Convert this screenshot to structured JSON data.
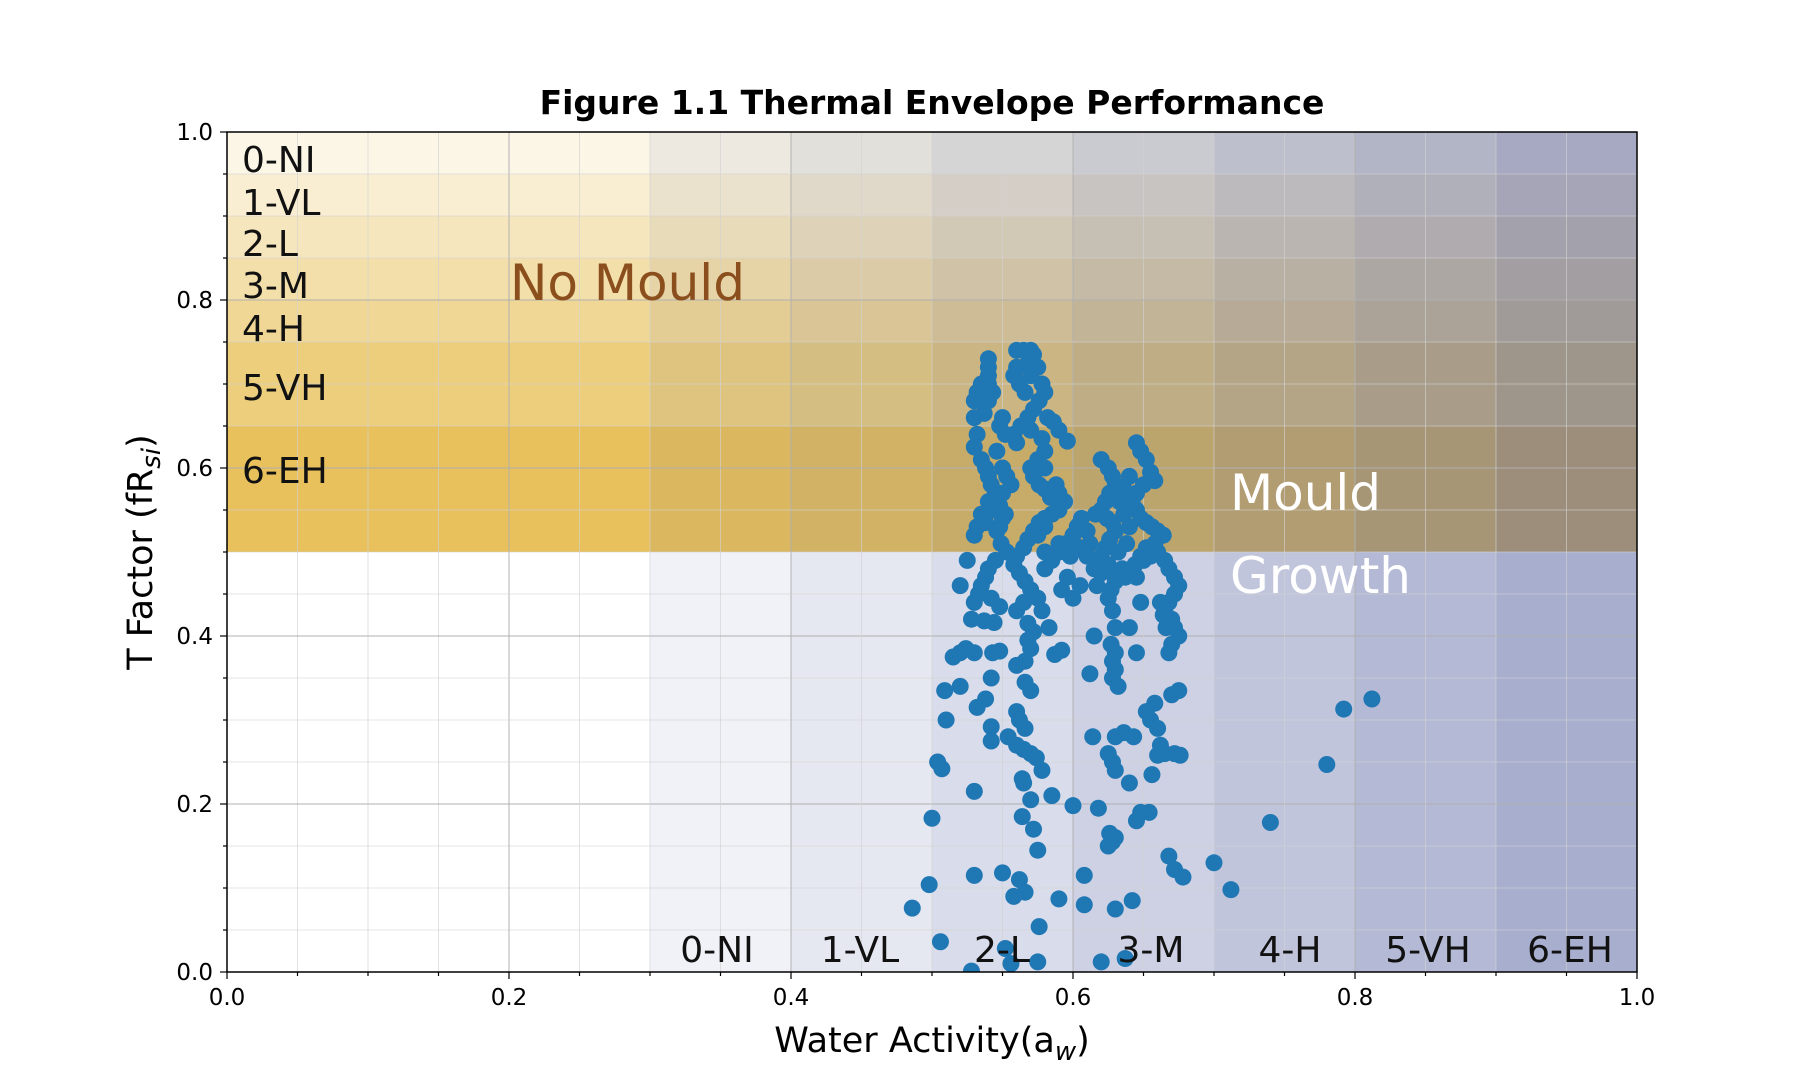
{
  "chart_data": {
    "type": "scatter",
    "title": "Figure 1.1 Thermal Envelope Performance",
    "xlabel": "Water Activity(a",
    "xlabel_sub": "w",
    "xlabel_end": ")",
    "ylabel": "T Factor (fR",
    "ylabel_sub": "si",
    "ylabel_end": ")",
    "xlim": [
      0.0,
      1.0
    ],
    "ylim": [
      0.0,
      1.0
    ],
    "xticks": [
      "0.0",
      "0.2",
      "0.4",
      "0.6",
      "0.8",
      "1.0"
    ],
    "yticks": [
      "0.0",
      "0.2",
      "0.4",
      "0.6",
      "0.8",
      "1.0"
    ],
    "grid": true,
    "y_band_labels": [
      "0-NI",
      "1-VL",
      "2-L",
      "3-M",
      "4-H",
      "5-VH",
      "6-EH"
    ],
    "x_band_labels": [
      "0-NI",
      "1-VL",
      "2-L",
      "3-M",
      "4-H",
      "5-VH",
      "6-EH"
    ],
    "annotations": [
      "No Mould",
      "Mould",
      "Growth"
    ],
    "colors": {
      "points": "#1f77b4",
      "y_band": "#e2b233",
      "x_band": "#4d5a9c",
      "no_mould_text": "#8b4f1e",
      "mould_text": "#ffffff"
    },
    "points": [
      [
        0.54,
        0.73
      ],
      [
        0.54,
        0.72
      ],
      [
        0.54,
        0.71
      ],
      [
        0.54,
        0.7
      ],
      [
        0.543,
        0.69
      ],
      [
        0.54,
        0.68
      ],
      [
        0.537,
        0.665
      ],
      [
        0.535,
        0.7
      ],
      [
        0.532,
        0.69
      ],
      [
        0.53,
        0.68
      ],
      [
        0.53,
        0.66
      ],
      [
        0.532,
        0.64
      ],
      [
        0.53,
        0.625
      ],
      [
        0.535,
        0.61
      ],
      [
        0.538,
        0.6
      ],
      [
        0.54,
        0.59
      ],
      [
        0.542,
        0.58
      ],
      [
        0.545,
        0.57
      ],
      [
        0.54,
        0.56
      ],
      [
        0.543,
        0.55
      ],
      [
        0.535,
        0.545
      ],
      [
        0.538,
        0.535
      ],
      [
        0.532,
        0.53
      ],
      [
        0.53,
        0.52
      ],
      [
        0.548,
        0.53
      ],
      [
        0.55,
        0.54
      ],
      [
        0.55,
        0.66
      ],
      [
        0.548,
        0.65
      ],
      [
        0.552,
        0.64
      ],
      [
        0.546,
        0.62
      ],
      [
        0.55,
        0.6
      ],
      [
        0.553,
        0.59
      ],
      [
        0.556,
        0.58
      ],
      [
        0.55,
        0.57
      ],
      [
        0.548,
        0.555
      ],
      [
        0.552,
        0.545
      ],
      [
        0.546,
        0.525
      ],
      [
        0.549,
        0.51
      ],
      [
        0.553,
        0.5
      ],
      [
        0.545,
        0.49
      ],
      [
        0.54,
        0.48
      ],
      [
        0.538,
        0.47
      ],
      [
        0.535,
        0.46
      ],
      [
        0.533,
        0.45
      ],
      [
        0.53,
        0.44
      ],
      [
        0.542,
        0.445
      ],
      [
        0.548,
        0.435
      ],
      [
        0.56,
        0.43
      ],
      [
        0.565,
        0.44
      ],
      [
        0.56,
        0.74
      ],
      [
        0.565,
        0.74
      ],
      [
        0.57,
        0.74
      ],
      [
        0.572,
        0.735
      ],
      [
        0.568,
        0.725
      ],
      [
        0.56,
        0.72
      ],
      [
        0.558,
        0.71
      ],
      [
        0.562,
        0.7
      ],
      [
        0.566,
        0.69
      ],
      [
        0.57,
        0.71
      ],
      [
        0.575,
        0.72
      ],
      [
        0.578,
        0.7
      ],
      [
        0.58,
        0.69
      ],
      [
        0.576,
        0.68
      ],
      [
        0.572,
        0.67
      ],
      [
        0.568,
        0.66
      ],
      [
        0.563,
        0.65
      ],
      [
        0.558,
        0.64
      ],
      [
        0.56,
        0.63
      ],
      [
        0.57,
        0.645
      ],
      [
        0.578,
        0.635
      ],
      [
        0.582,
        0.66
      ],
      [
        0.586,
        0.655
      ],
      [
        0.59,
        0.645
      ],
      [
        0.58,
        0.62
      ],
      [
        0.575,
        0.61
      ],
      [
        0.57,
        0.6
      ],
      [
        0.572,
        0.59
      ],
      [
        0.576,
        0.58
      ],
      [
        0.58,
        0.575
      ],
      [
        0.584,
        0.565
      ],
      [
        0.588,
        0.58
      ],
      [
        0.59,
        0.57
      ],
      [
        0.594,
        0.56
      ],
      [
        0.59,
        0.55
      ],
      [
        0.585,
        0.545
      ],
      [
        0.58,
        0.54
      ],
      [
        0.576,
        0.535
      ],
      [
        0.572,
        0.525
      ],
      [
        0.568,
        0.515
      ],
      [
        0.565,
        0.505
      ],
      [
        0.56,
        0.495
      ],
      [
        0.558,
        0.485
      ],
      [
        0.562,
        0.475
      ],
      [
        0.566,
        0.465
      ],
      [
        0.57,
        0.455
      ],
      [
        0.575,
        0.445
      ],
      [
        0.58,
        0.48
      ],
      [
        0.585,
        0.49
      ],
      [
        0.59,
        0.5
      ],
      [
        0.595,
        0.51
      ],
      [
        0.6,
        0.52
      ],
      [
        0.603,
        0.53
      ],
      [
        0.606,
        0.54
      ],
      [
        0.61,
        0.525
      ],
      [
        0.612,
        0.51
      ],
      [
        0.605,
        0.505
      ],
      [
        0.598,
        0.495
      ],
      [
        0.596,
        0.47
      ],
      [
        0.592,
        0.455
      ],
      [
        0.6,
        0.445
      ],
      [
        0.61,
        0.495
      ],
      [
        0.615,
        0.48
      ],
      [
        0.62,
        0.475
      ],
      [
        0.617,
        0.46
      ],
      [
        0.62,
        0.61
      ],
      [
        0.625,
        0.6
      ],
      [
        0.628,
        0.59
      ],
      [
        0.63,
        0.58
      ],
      [
        0.626,
        0.57
      ],
      [
        0.623,
        0.56
      ],
      [
        0.62,
        0.55
      ],
      [
        0.624,
        0.54
      ],
      [
        0.628,
        0.535
      ],
      [
        0.63,
        0.525
      ],
      [
        0.626,
        0.515
      ],
      [
        0.623,
        0.505
      ],
      [
        0.62,
        0.495
      ],
      [
        0.625,
        0.485
      ],
      [
        0.628,
        0.475
      ],
      [
        0.63,
        0.465
      ],
      [
        0.627,
        0.455
      ],
      [
        0.625,
        0.445
      ],
      [
        0.628,
        0.43
      ],
      [
        0.63,
        0.41
      ],
      [
        0.627,
        0.39
      ],
      [
        0.63,
        0.38
      ],
      [
        0.628,
        0.37
      ],
      [
        0.63,
        0.36
      ],
      [
        0.628,
        0.35
      ],
      [
        0.632,
        0.34
      ],
      [
        0.645,
        0.63
      ],
      [
        0.648,
        0.62
      ],
      [
        0.652,
        0.61
      ],
      [
        0.655,
        0.595
      ],
      [
        0.658,
        0.585
      ],
      [
        0.65,
        0.58
      ],
      [
        0.645,
        0.57
      ],
      [
        0.642,
        0.56
      ],
      [
        0.645,
        0.55
      ],
      [
        0.648,
        0.54
      ],
      [
        0.652,
        0.535
      ],
      [
        0.656,
        0.53
      ],
      [
        0.66,
        0.525
      ],
      [
        0.664,
        0.52
      ],
      [
        0.658,
        0.51
      ],
      [
        0.652,
        0.505
      ],
      [
        0.648,
        0.495
      ],
      [
        0.644,
        0.485
      ],
      [
        0.64,
        0.475
      ],
      [
        0.645,
        0.47
      ],
      [
        0.65,
        0.49
      ],
      [
        0.655,
        0.495
      ],
      [
        0.66,
        0.5
      ],
      [
        0.665,
        0.49
      ],
      [
        0.668,
        0.48
      ],
      [
        0.672,
        0.47
      ],
      [
        0.675,
        0.46
      ],
      [
        0.672,
        0.45
      ],
      [
        0.668,
        0.44
      ],
      [
        0.665,
        0.43
      ],
      [
        0.67,
        0.42
      ],
      [
        0.672,
        0.41
      ],
      [
        0.675,
        0.4
      ],
      [
        0.67,
        0.39
      ],
      [
        0.668,
        0.38
      ],
      [
        0.666,
        0.41
      ],
      [
        0.664,
        0.425
      ],
      [
        0.662,
        0.44
      ],
      [
        0.648,
        0.44
      ],
      [
        0.645,
        0.38
      ],
      [
        0.64,
        0.41
      ],
      [
        0.637,
        0.47
      ],
      [
        0.635,
        0.48
      ],
      [
        0.632,
        0.5
      ],
      [
        0.638,
        0.51
      ],
      [
        0.64,
        0.53
      ],
      [
        0.636,
        0.545
      ],
      [
        0.633,
        0.56
      ],
      [
        0.636,
        0.575
      ],
      [
        0.64,
        0.59
      ],
      [
        0.615,
        0.4
      ],
      [
        0.612,
        0.355
      ],
      [
        0.614,
        0.28
      ],
      [
        0.63,
        0.28
      ],
      [
        0.636,
        0.285
      ],
      [
        0.643,
        0.28
      ],
      [
        0.655,
        0.3
      ],
      [
        0.658,
        0.32
      ],
      [
        0.652,
        0.31
      ],
      [
        0.66,
        0.29
      ],
      [
        0.662,
        0.27
      ],
      [
        0.665,
        0.26
      ],
      [
        0.67,
        0.33
      ],
      [
        0.675,
        0.335
      ],
      [
        0.672,
        0.26
      ],
      [
        0.676,
        0.258
      ],
      [
        0.66,
        0.258
      ],
      [
        0.656,
        0.235
      ],
      [
        0.64,
        0.225
      ],
      [
        0.625,
        0.26
      ],
      [
        0.628,
        0.25
      ],
      [
        0.63,
        0.24
      ],
      [
        0.618,
        0.195
      ],
      [
        0.648,
        0.19
      ],
      [
        0.654,
        0.19
      ],
      [
        0.626,
        0.165
      ],
      [
        0.628,
        0.155
      ],
      [
        0.63,
        0.16
      ],
      [
        0.625,
        0.15
      ],
      [
        0.6,
        0.198
      ],
      [
        0.668,
        0.138
      ],
      [
        0.672,
        0.122
      ],
      [
        0.678,
        0.113
      ],
      [
        0.7,
        0.13
      ],
      [
        0.712,
        0.098
      ],
      [
        0.74,
        0.178
      ],
      [
        0.78,
        0.247
      ],
      [
        0.792,
        0.313
      ],
      [
        0.812,
        0.325
      ],
      [
        0.608,
        0.115
      ],
      [
        0.608,
        0.08
      ],
      [
        0.63,
        0.075
      ],
      [
        0.642,
        0.085
      ],
      [
        0.645,
        0.18
      ],
      [
        0.585,
        0.21
      ],
      [
        0.578,
        0.24
      ],
      [
        0.574,
        0.255
      ],
      [
        0.57,
        0.26
      ],
      [
        0.565,
        0.265
      ],
      [
        0.56,
        0.27
      ],
      [
        0.572,
        0.17
      ],
      [
        0.57,
        0.205
      ],
      [
        0.565,
        0.225
      ],
      [
        0.575,
        0.145
      ],
      [
        0.562,
        0.11
      ],
      [
        0.566,
        0.095
      ],
      [
        0.558,
        0.09
      ],
      [
        0.55,
        0.118
      ],
      [
        0.53,
        0.115
      ],
      [
        0.576,
        0.054
      ],
      [
        0.575,
        0.012
      ],
      [
        0.556,
        0.01
      ],
      [
        0.552,
        0.028
      ],
      [
        0.528,
        0.001
      ],
      [
        0.62,
        0.012
      ],
      [
        0.637,
        0.016
      ],
      [
        0.506,
        0.036
      ],
      [
        0.486,
        0.076
      ],
      [
        0.498,
        0.104
      ],
      [
        0.5,
        0.183
      ],
      [
        0.507,
        0.242
      ],
      [
        0.504,
        0.25
      ],
      [
        0.53,
        0.215
      ],
      [
        0.564,
        0.185
      ],
      [
        0.59,
        0.087
      ],
      [
        0.554,
        0.28
      ],
      [
        0.56,
        0.31
      ],
      [
        0.566,
        0.29
      ],
      [
        0.57,
        0.335
      ],
      [
        0.566,
        0.345
      ],
      [
        0.542,
        0.35
      ],
      [
        0.542,
        0.292
      ],
      [
        0.538,
        0.325
      ],
      [
        0.532,
        0.315
      ],
      [
        0.51,
        0.3
      ],
      [
        0.509,
        0.335
      ],
      [
        0.52,
        0.34
      ],
      [
        0.53,
        0.38
      ],
      [
        0.543,
        0.38
      ],
      [
        0.548,
        0.382
      ],
      [
        0.537,
        0.418
      ],
      [
        0.544,
        0.416
      ],
      [
        0.528,
        0.42
      ],
      [
        0.52,
        0.38
      ],
      [
        0.515,
        0.375
      ],
      [
        0.524,
        0.385
      ],
      [
        0.52,
        0.46
      ],
      [
        0.525,
        0.49
      ],
      [
        0.56,
        0.365
      ],
      [
        0.566,
        0.37
      ],
      [
        0.57,
        0.385
      ],
      [
        0.568,
        0.395
      ],
      [
        0.572,
        0.405
      ],
      [
        0.568,
        0.415
      ],
      [
        0.587,
        0.378
      ],
      [
        0.592,
        0.383
      ],
      [
        0.605,
        0.46
      ],
      [
        0.616,
        0.545
      ],
      [
        0.583,
        0.41
      ],
      [
        0.578,
        0.43
      ],
      [
        0.542,
        0.275
      ],
      [
        0.562,
        0.3
      ],
      [
        0.564,
        0.23
      ],
      [
        0.596,
        0.632
      ],
      [
        0.59,
        0.51
      ],
      [
        0.604,
        0.532
      ],
      [
        0.58,
        0.5
      ],
      [
        0.575,
        0.52
      ],
      [
        0.58,
        0.53
      ],
      [
        0.58,
        0.6
      ]
    ]
  }
}
